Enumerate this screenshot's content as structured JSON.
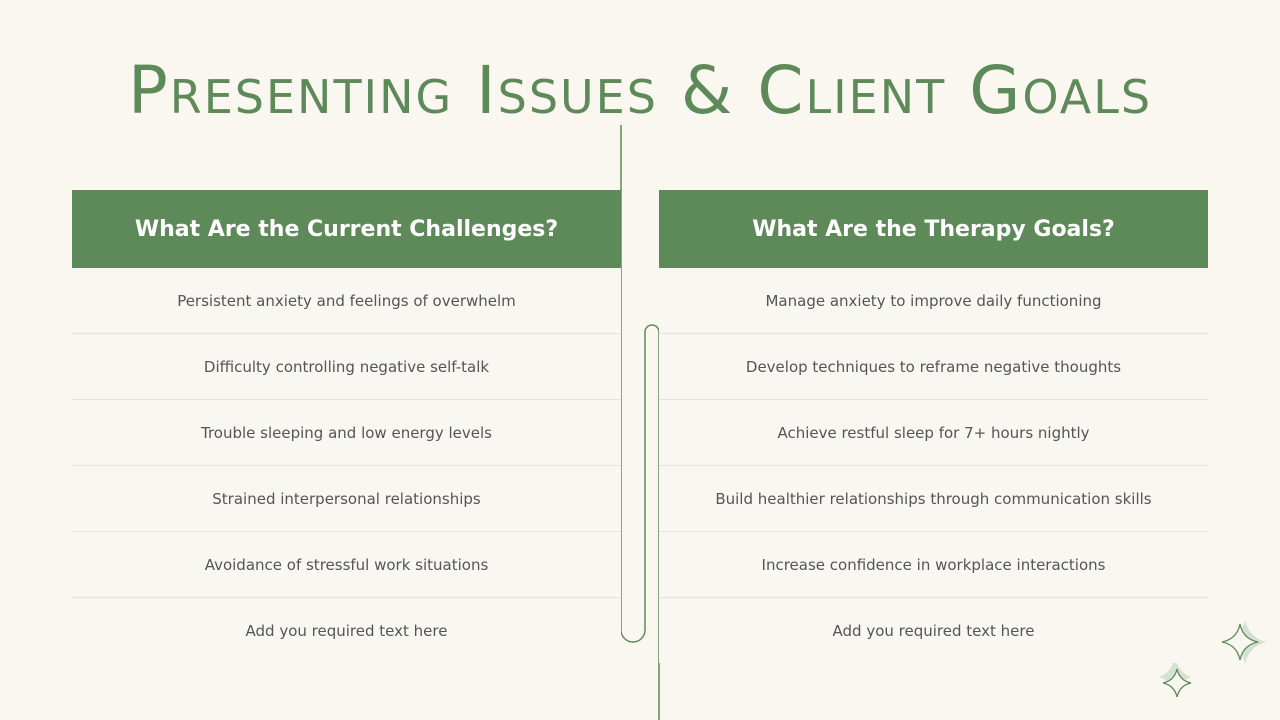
{
  "title": "Presenting Issues & Client Goals",
  "colors": {
    "accent": "#5e8a5a",
    "background": "#f9f7f0"
  },
  "left": {
    "heading": "What Are the Current Challenges?",
    "items": [
      "Persistent anxiety and feelings of overwhelm",
      "Difficulty controlling negative self-talk",
      "Trouble sleeping and low energy levels",
      "Strained interpersonal relationships",
      "Avoidance of stressful work situations",
      "Add you required text here"
    ]
  },
  "right": {
    "heading": "What Are the Therapy Goals?",
    "items": [
      "Manage anxiety to improve daily functioning",
      "Develop techniques to reframe negative thoughts",
      "Achieve restful sleep for 7+ hours nightly",
      "Build healthier relationships through communication skills",
      "Increase confidence in workplace interactions",
      "Add you required text here"
    ]
  },
  "decor": {
    "icons": [
      "sparkle-icon",
      "sparkle-icon"
    ]
  }
}
